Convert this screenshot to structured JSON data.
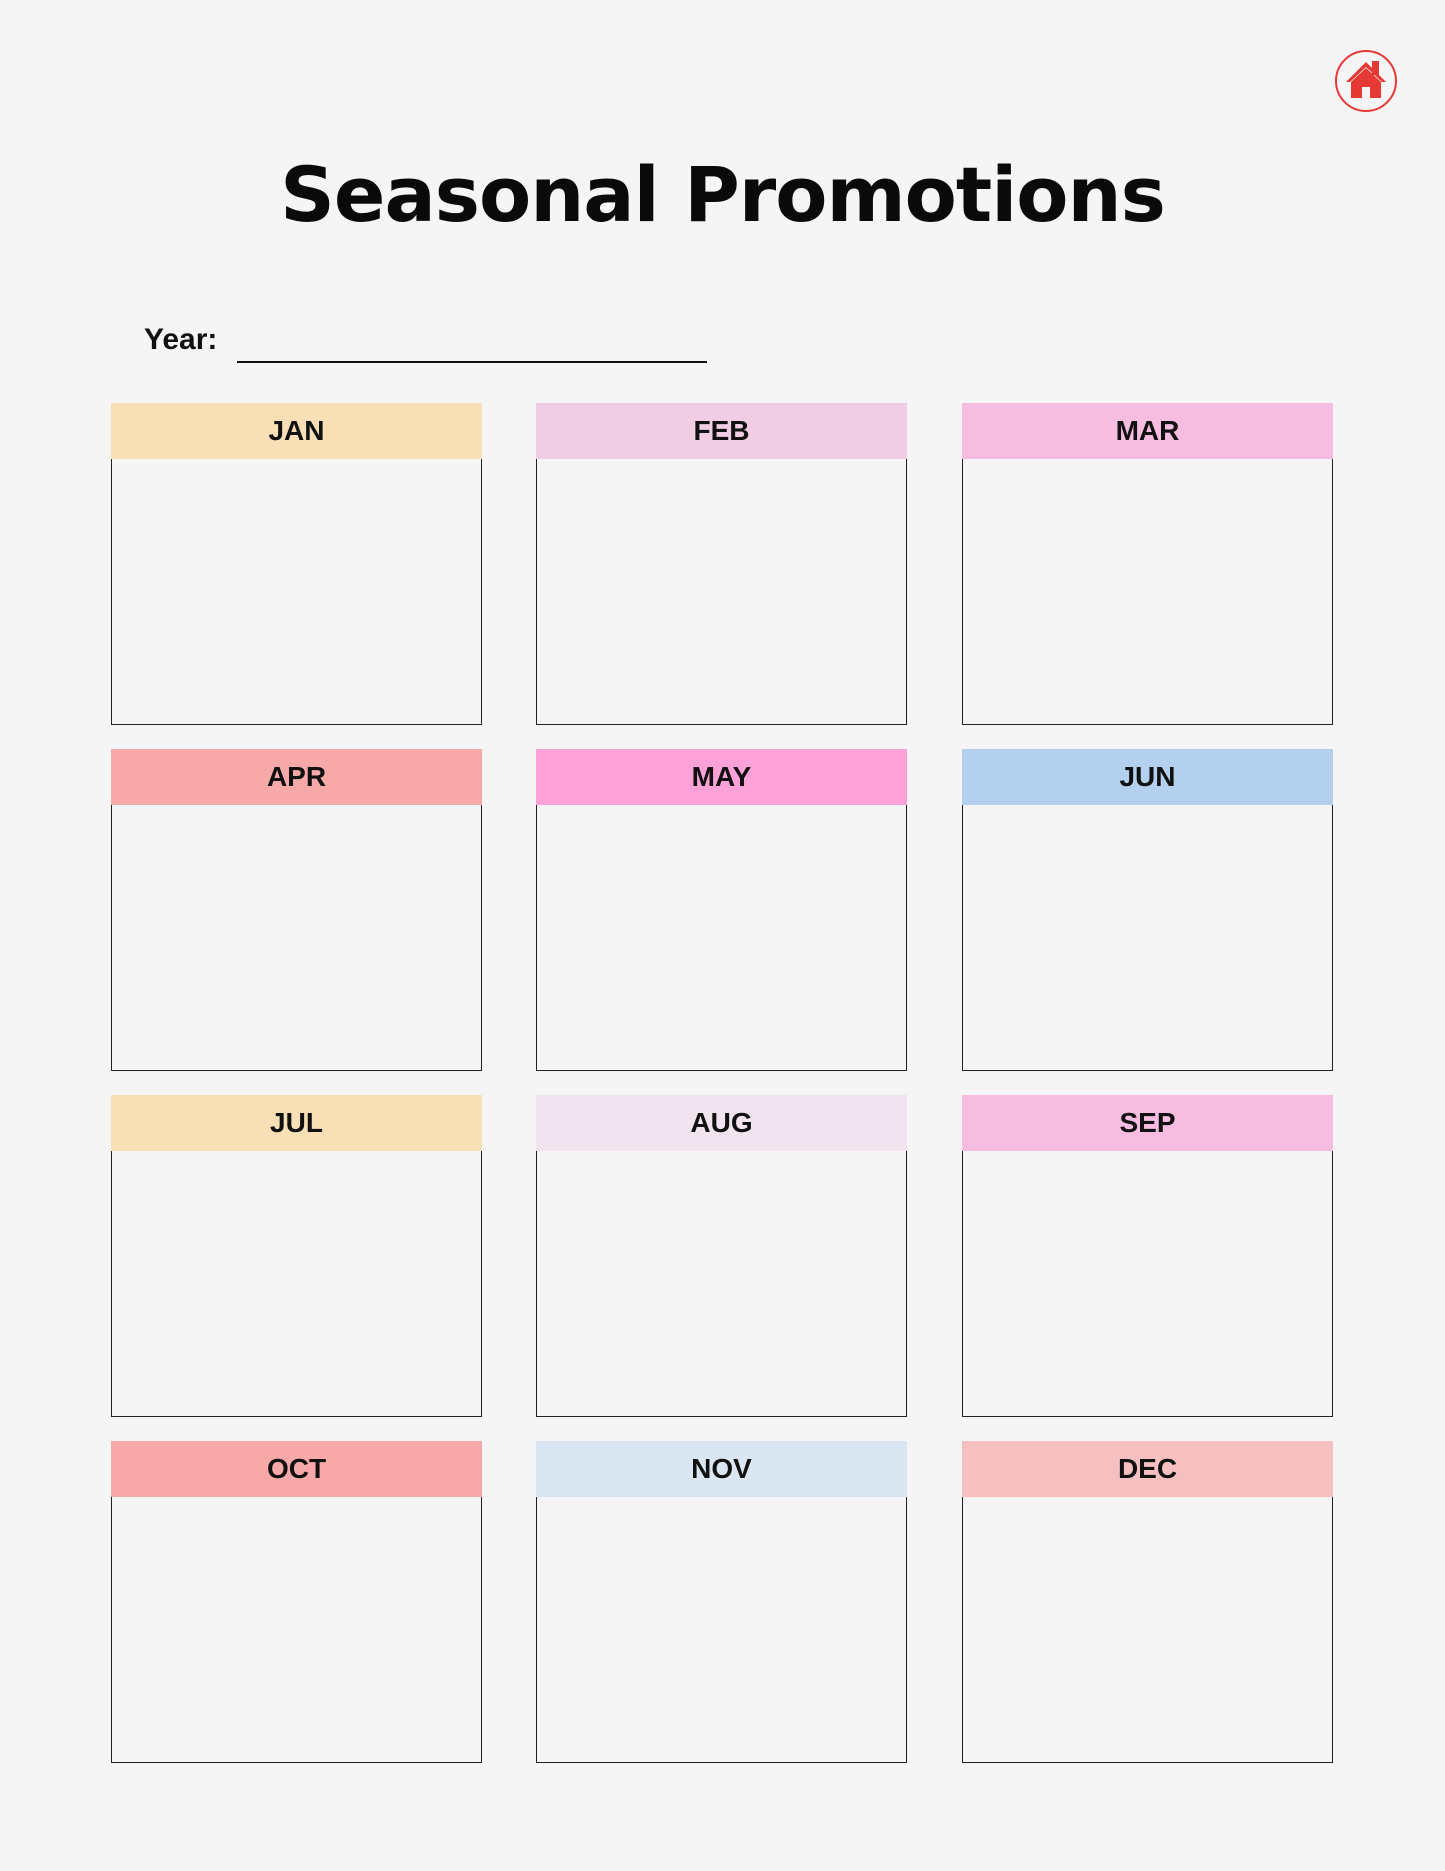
{
  "title": "Seasonal Promotions",
  "year": {
    "label": "Year:",
    "value": ""
  },
  "logo": {
    "icon": "home-icon",
    "color": "#e53935"
  },
  "months": [
    {
      "label": "JAN",
      "color": "#f8dfb5"
    },
    {
      "label": "FEB",
      "color": "#f0cde2"
    },
    {
      "label": "MAR",
      "color": "#f6bde0"
    },
    {
      "label": "APR",
      "color": "#f6a9a8"
    },
    {
      "label": "MAY",
      "color": "#fca2d9"
    },
    {
      "label": "JUN",
      "color": "#b3d1ee"
    },
    {
      "label": "JUL",
      "color": "#f8dfb5"
    },
    {
      "label": "AUG",
      "color": "#f2e4ee"
    },
    {
      "label": "SEP",
      "color": "#f6bde0"
    },
    {
      "label": "OCT",
      "color": "#f6a9a8"
    },
    {
      "label": "NOV",
      "color": "#dae6f1"
    },
    {
      "label": "DEC",
      "color": "#f6c0c0"
    }
  ]
}
